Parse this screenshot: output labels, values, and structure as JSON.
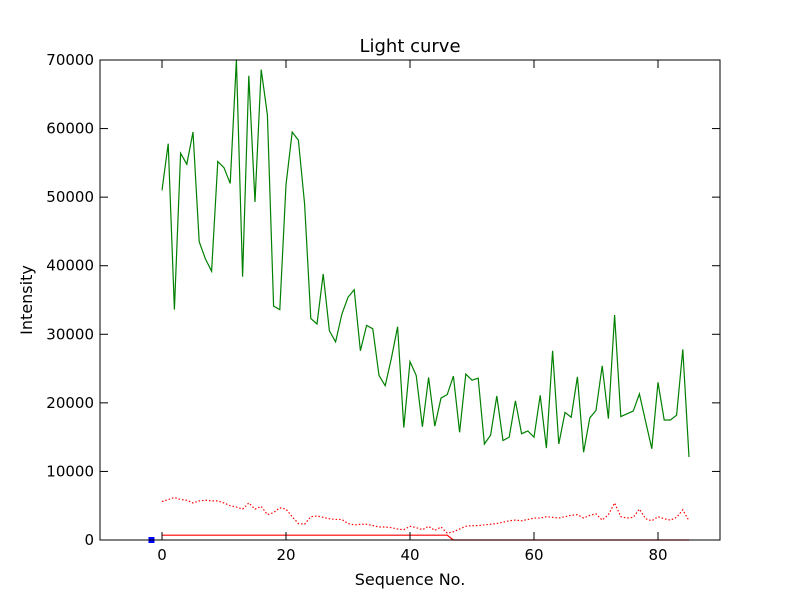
{
  "chart_data": {
    "type": "line",
    "title": "Light curve",
    "xlabel": "Sequence No.",
    "ylabel": "Intensity",
    "xlim": [
      -10,
      90
    ],
    "ylim": [
      0,
      70000
    ],
    "xticks": [
      0,
      20,
      40,
      60,
      80
    ],
    "yticks": [
      0,
      10000,
      20000,
      30000,
      40000,
      50000,
      60000,
      70000
    ],
    "grid": false,
    "series": [
      {
        "style": "solid",
        "color": "#008000",
        "x": [
          0,
          1,
          2,
          3,
          4,
          5,
          6,
          7,
          8,
          9,
          10,
          11,
          12,
          13,
          14,
          15,
          16,
          17,
          18,
          19,
          20,
          21,
          22,
          23,
          24,
          25,
          26,
          27,
          28,
          29,
          30,
          31,
          32,
          33,
          34,
          35,
          36,
          37,
          38,
          39,
          40,
          41,
          42,
          43,
          44,
          45,
          46,
          47,
          48,
          49,
          50,
          51,
          52,
          53,
          54,
          55,
          56,
          57,
          58,
          59,
          60,
          61,
          62,
          63,
          64,
          65,
          66,
          67,
          68,
          69,
          70,
          71,
          72,
          73,
          74,
          75,
          76,
          77,
          78,
          79,
          80,
          81,
          82,
          83,
          84,
          85
        ],
        "y": [
          51000,
          57800,
          33600,
          56400,
          54800,
          59500,
          43500,
          41000,
          39200,
          55200,
          54300,
          52000,
          70000,
          38400,
          67700,
          49300,
          68600,
          62000,
          34100,
          33600,
          51800,
          59500,
          58300,
          49000,
          32300,
          31500,
          38800,
          30500,
          28900,
          32900,
          35400,
          36500,
          27600,
          31300,
          30800,
          24000,
          22500,
          26500,
          31100,
          16400,
          26000,
          24000,
          16500,
          23700,
          16600,
          20700,
          21200,
          23900,
          15700,
          24200,
          23300,
          23600,
          14000,
          15300,
          21000,
          14500,
          15000,
          20300,
          15500,
          15900,
          15000,
          21100,
          13400,
          27600,
          14000,
          18600,
          17900,
          23800,
          12800,
          17800,
          18900,
          25400,
          17700,
          32800,
          18000,
          18400,
          18800,
          21300,
          17300,
          13300,
          23000,
          17500,
          17500,
          18200,
          27800,
          12100
        ]
      },
      {
        "style": "dotted",
        "color": "#ff0000",
        "x": [
          0,
          1,
          2,
          3,
          4,
          5,
          6,
          7,
          8,
          9,
          10,
          11,
          12,
          13,
          14,
          15,
          16,
          17,
          18,
          19,
          20,
          21,
          22,
          23,
          24,
          25,
          26,
          27,
          28,
          29,
          30,
          31,
          32,
          33,
          34,
          35,
          36,
          37,
          38,
          39,
          40,
          41,
          42,
          43,
          44,
          45,
          46,
          47,
          48,
          49,
          50,
          51,
          52,
          53,
          54,
          55,
          56,
          57,
          58,
          59,
          60,
          61,
          62,
          63,
          64,
          65,
          66,
          67,
          68,
          69,
          70,
          71,
          72,
          73,
          74,
          75,
          76,
          77,
          78,
          79,
          80,
          81,
          82,
          83,
          84,
          85
        ],
        "y": [
          5600,
          5900,
          6200,
          5900,
          5800,
          5400,
          5700,
          5800,
          5700,
          5700,
          5400,
          5000,
          4800,
          4500,
          5400,
          4500,
          4900,
          3700,
          4000,
          4700,
          4500,
          3400,
          2400,
          2300,
          3400,
          3500,
          3300,
          3100,
          3000,
          3000,
          2400,
          2200,
          2300,
          2300,
          2100,
          1900,
          1900,
          1800,
          1600,
          1500,
          2000,
          1800,
          1500,
          2000,
          1400,
          1900,
          1000,
          1200,
          1600,
          2000,
          2100,
          2100,
          2200,
          2300,
          2400,
          2600,
          2800,
          2900,
          2800,
          3000,
          3200,
          3200,
          3400,
          3300,
          3200,
          3400,
          3600,
          3700,
          3200,
          3600,
          3800,
          2900,
          3700,
          5400,
          3400,
          3200,
          3300,
          4500,
          3100,
          2800,
          3400,
          3100,
          2900,
          3300,
          4400,
          2800
        ]
      },
      {
        "style": "solid",
        "color": "#ff0000",
        "x": [
          0,
          46,
          47,
          85
        ],
        "y": [
          700,
          700,
          0,
          0
        ]
      },
      {
        "style": "marker",
        "color": "#0000ff",
        "x": [
          -1.7
        ],
        "y": [
          0
        ]
      }
    ]
  }
}
